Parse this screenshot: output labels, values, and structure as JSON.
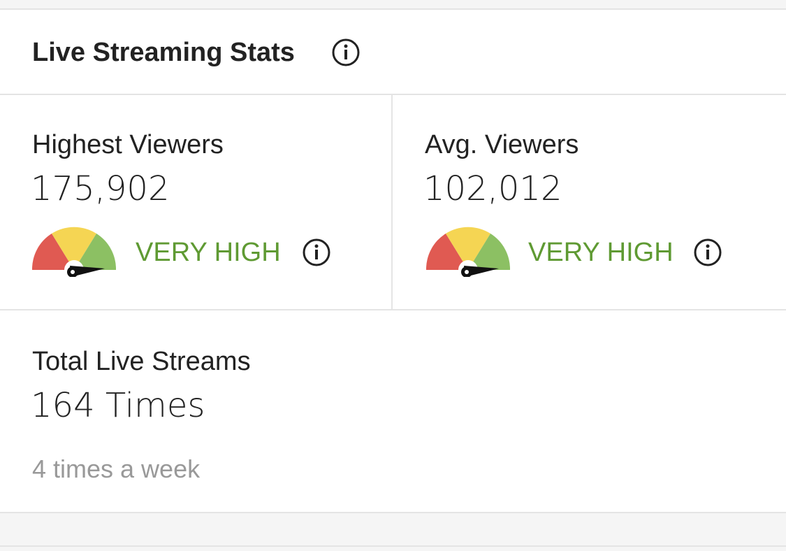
{
  "header": {
    "title": "Live Streaming Stats"
  },
  "stats": [
    {
      "label": "Highest Viewers",
      "value": "175,902",
      "level": "VERY HIGH"
    },
    {
      "label": "Avg. Viewers",
      "value": "102,012",
      "level": "VERY HIGH"
    }
  ],
  "total": {
    "label": "Total Live Streams",
    "value": "164 Times",
    "note": "4 times a week"
  }
}
